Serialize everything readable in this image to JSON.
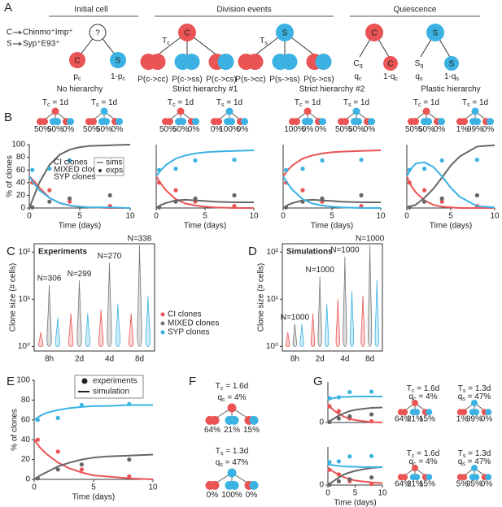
{
  "panel_labels": [
    "A",
    "B",
    "C",
    "D",
    "E",
    "F",
    "G"
  ],
  "key": {
    "c": "C",
    "c_text": "Chinmo⁺Imp⁺",
    "s": "S",
    "s_text": "Syp⁺E93⁺"
  },
  "headers": [
    "Initial cell",
    "Division events",
    "Quiescence"
  ],
  "initial": {
    "root": "?",
    "c": "C",
    "s": "S",
    "pc": [
      "p",
      "c"
    ],
    "one_minus_pc": [
      "1-p",
      "c"
    ]
  },
  "division": {
    "c": "C",
    "tc": [
      "T",
      "c"
    ],
    "c_labels": [
      "P(c->cc)",
      "P(c->ss)",
      "P(c->cs)"
    ],
    "s": "S",
    "ts": [
      "T",
      "s"
    ],
    "s_labels": [
      "P(s->cc)",
      "P(s->ss)",
      "P(s->cs)"
    ]
  },
  "quiescence": {
    "c": "C",
    "cq": [
      "C",
      "q"
    ],
    "qc": [
      "q",
      "c"
    ],
    "c_child": "C",
    "one_minus_qc": [
      "1-q",
      "c"
    ],
    "s": "S",
    "sq": [
      "S",
      "q"
    ],
    "qs": [
      "q",
      "s"
    ],
    "s_child": "S",
    "one_minus_qs": [
      "1-q",
      "s"
    ]
  },
  "hierarchies": [
    {
      "title": "No hierarchy",
      "tc": [
        "T",
        "c",
        " = 1d"
      ],
      "tc_pcts": [
        "50%",
        "50%",
        "0%"
      ],
      "ts": [
        "T",
        "s",
        " = 1d"
      ],
      "ts_pcts": [
        "50%",
        "50%",
        "0%"
      ]
    },
    {
      "title": "Strict hierarchy #1",
      "tc": [
        "T",
        "c",
        " = 1d"
      ],
      "tc_pcts": [
        "50%",
        "50%",
        "0%"
      ],
      "ts": [
        "T",
        "s",
        " = 1d"
      ],
      "ts_pcts": [
        "0%",
        "100%",
        "0%"
      ]
    },
    {
      "title": "Strict hierarchy #2",
      "tc": [
        "T",
        "c",
        " = 1d"
      ],
      "tc_pcts": [
        "100%",
        "0%",
        "0%"
      ],
      "ts": [
        "T",
        "s",
        " = 1d"
      ],
      "ts_pcts": [
        "50%",
        "50%",
        "0%"
      ]
    },
    {
      "title": "Plastic hierarchy",
      "tc": [
        "T",
        "c",
        " = 1d"
      ],
      "tc_pcts": [
        "50%",
        "50%",
        "0%"
      ],
      "ts": [
        "T",
        "s",
        " = 1d"
      ],
      "ts_pcts": [
        "1%",
        "99%",
        "0%"
      ]
    }
  ],
  "fit": {
    "tc": [
      "T",
      "c",
      " = 1.6d"
    ],
    "qc": [
      "q",
      "c",
      " = 4%"
    ],
    "c_pcts": [
      "64%",
      "21%",
      "15%"
    ],
    "ts": [
      "T",
      "s",
      " = 1.3d"
    ],
    "qs": [
      "q",
      "s",
      " = 47%"
    ],
    "s_pcts": [
      "0%",
      "100%",
      "0%"
    ]
  },
  "g_trees": [
    {
      "tc": [
        "T",
        "c",
        " = 1.6d"
      ],
      "qc": [
        "q",
        "c",
        " = 4%"
      ],
      "c_pcts": [
        "64%",
        "21%",
        "15%"
      ],
      "ts": [
        "T",
        "s",
        " = 1.3d"
      ],
      "qs": [
        "q",
        "s",
        " = 47%"
      ],
      "s_pcts": [
        "1%",
        "99%",
        "0%"
      ]
    },
    {
      "tc": [
        "T",
        "c",
        " = 1.6d"
      ],
      "qc": [
        "q",
        "c",
        " = 4%"
      ],
      "c_pcts": [
        "64%",
        "21%",
        "15%"
      ],
      "ts": [
        "T",
        "s",
        " = 1.3d"
      ],
      "qs": [
        "q",
        "s",
        " = 47%"
      ],
      "s_pcts": [
        "5%",
        "95%",
        "0%"
      ]
    }
  ],
  "chart_data": [
    {
      "type": "line",
      "x": [
        0,
        0.5,
        1,
        2,
        3,
        4,
        5,
        6,
        8,
        10
      ],
      "xlim": [
        0,
        10
      ],
      "xticks": [
        0,
        5,
        10
      ],
      "ylim": [
        0,
        100
      ],
      "yticks": [
        0,
        20,
        40,
        60,
        80,
        100
      ],
      "ylabel": "% of clones",
      "xlabel": "Time (days)",
      "legend_labels": [
        "sims",
        "exps"
      ],
      "exp_x": [
        0.3,
        2,
        4,
        8
      ],
      "series": [
        {
          "name": "CI clones",
          "color": "#ea5455",
          "values": [
            50,
            42,
            32,
            16,
            8,
            4,
            2,
            1,
            0,
            0
          ],
          "exp_values": [
            40,
            28,
            10,
            3
          ]
        },
        {
          "name": "MIXED clones",
          "color": "#666666",
          "values": [
            0,
            20,
            40,
            68,
            84,
            92,
            96,
            98,
            99,
            100
          ],
          "exp_values": [
            1,
            10,
            15,
            20
          ]
        },
        {
          "name": "SYP clones",
          "color": "#3bb2e3",
          "values": [
            50,
            38,
            28,
            16,
            8,
            4,
            2,
            1,
            1,
            0
          ],
          "exp_values": [
            60,
            62,
            75,
            76
          ]
        }
      ]
    },
    {
      "type": "line",
      "x": [
        0,
        0.5,
        1,
        2,
        3,
        4,
        5,
        6,
        8,
        10
      ],
      "xlim": [
        0,
        10
      ],
      "xticks": [
        0,
        5,
        10
      ],
      "ylim": [
        0,
        100
      ],
      "xlabel": "Time (days)",
      "exp_x": [
        0.3,
        2,
        4,
        8
      ],
      "series": [
        {
          "color": "#ea5455",
          "values": [
            50,
            38,
            28,
            14,
            7,
            4,
            2,
            1,
            0,
            0
          ],
          "exp_values": [
            40,
            28,
            10,
            3
          ]
        },
        {
          "color": "#666666",
          "values": [
            0,
            5,
            8,
            12,
            13,
            12,
            11,
            10,
            9,
            9
          ],
          "exp_values": [
            1,
            10,
            15,
            20
          ]
        },
        {
          "color": "#3bb2e3",
          "values": [
            50,
            60,
            68,
            78,
            83,
            86,
            88,
            89,
            90,
            91
          ],
          "exp_values": [
            60,
            62,
            75,
            76
          ]
        }
      ]
    },
    {
      "type": "line",
      "x": [
        0,
        0.5,
        1,
        2,
        3,
        4,
        5,
        6,
        8,
        10
      ],
      "xlim": [
        0,
        10
      ],
      "xticks": [
        0,
        5,
        10
      ],
      "ylim": [
        0,
        100
      ],
      "xlabel": "Time (days)",
      "exp_x": [
        0.3,
        2,
        4,
        8
      ],
      "series": [
        {
          "color": "#ea5455",
          "values": [
            50,
            60,
            68,
            78,
            83,
            86,
            88,
            89,
            90,
            91
          ],
          "exp_values": [
            40,
            28,
            10,
            3
          ]
        },
        {
          "color": "#666666",
          "values": [
            0,
            5,
            8,
            12,
            13,
            12,
            11,
            10,
            9,
            9
          ],
          "exp_values": [
            1,
            10,
            15,
            20
          ]
        },
        {
          "color": "#3bb2e3",
          "values": [
            50,
            38,
            28,
            14,
            7,
            4,
            2,
            1,
            0,
            0
          ],
          "exp_values": [
            60,
            62,
            75,
            76
          ]
        }
      ]
    },
    {
      "type": "line",
      "x": [
        0,
        0.5,
        1,
        2,
        3,
        4,
        5,
        6,
        8,
        10
      ],
      "xlim": [
        0,
        10
      ],
      "xticks": [
        0,
        5,
        10
      ],
      "ylim": [
        0,
        100
      ],
      "xlabel": "Time (days)",
      "exp_x": [
        0.3,
        2,
        4,
        8
      ],
      "series": [
        {
          "color": "#ea5455",
          "values": [
            50,
            35,
            25,
            12,
            5,
            2,
            1,
            0,
            0,
            0
          ],
          "exp_values": [
            40,
            28,
            10,
            3
          ]
        },
        {
          "color": "#666666",
          "values": [
            0,
            3,
            5,
            16,
            30,
            48,
            67,
            81,
            97,
            99
          ],
          "exp_values": [
            1,
            10,
            15,
            20
          ]
        },
        {
          "color": "#3bb2e3",
          "values": [
            50,
            62,
            70,
            72,
            65,
            50,
            32,
            18,
            3,
            1
          ],
          "exp_values": [
            60,
            62,
            75,
            76
          ]
        }
      ]
    },
    {
      "type": "violin",
      "title": "Experiments",
      "categories": [
        "8h",
        "2d",
        "4d",
        "8d"
      ],
      "log": true,
      "ylim": [
        0.8,
        150
      ],
      "yticks": [
        {
          "value": 1,
          "label": "10⁰"
        },
        {
          "value": 10,
          "label": "10¹"
        },
        {
          "value": 100,
          "label": "10²"
        }
      ],
      "ylabel": "Clone size (# cells)",
      "annotations": [
        "N=306",
        "N=299",
        "N=270",
        "N=338"
      ],
      "series": [
        {
          "name": "CI clones",
          "color": "#ea5455",
          "values": [
            2,
            5,
            6,
            5
          ]
        },
        {
          "name": "MIXED clones",
          "color": "#777777",
          "values": [
            20,
            25,
            60,
            140
          ]
        },
        {
          "name": "SYP clones",
          "color": "#3bb2e3",
          "values": [
            4,
            5,
            8,
            12
          ]
        }
      ]
    },
    {
      "type": "violin",
      "title": "Simulations",
      "categories": [
        "8h",
        "2d",
        "4d",
        "8d"
      ],
      "log": true,
      "ylim": [
        0.8,
        150
      ],
      "yticks": [
        {
          "value": 1,
          "label": "10⁰"
        },
        {
          "value": 10,
          "label": "10¹"
        },
        {
          "value": 100,
          "label": "10²"
        }
      ],
      "ylabel": "Clone size (# cells)",
      "annotations": [
        "N=1000",
        "N=1000",
        "N=1000",
        "N=1000"
      ],
      "series": [
        {
          "color": "#ea5455",
          "values": [
            2,
            5,
            10,
            12
          ]
        },
        {
          "color": "#777777",
          "values": [
            3,
            30,
            80,
            140
          ]
        },
        {
          "color": "#3bb2e3",
          "values": [
            3,
            8,
            15,
            25
          ]
        }
      ]
    },
    {
      "type": "line",
      "x": [
        0,
        0.5,
        1,
        2,
        3,
        4,
        5,
        6,
        8,
        10
      ],
      "xlim": [
        0,
        10
      ],
      "xticks": [
        0,
        5,
        10
      ],
      "ylim": [
        0,
        100
      ],
      "yticks": [
        0,
        20,
        40,
        60,
        80,
        100
      ],
      "ylabel": "% of clones",
      "xlabel": "Time (days)",
      "legend_labels": [
        "experiments",
        "simulation"
      ],
      "exp_x": [
        0.3,
        2,
        4,
        8
      ],
      "series": [
        {
          "color": "#ea5455",
          "values": [
            40,
            32,
            26,
            17,
            11,
            7,
            4,
            3,
            1,
            0
          ],
          "exp_values": [
            40,
            28,
            10,
            3
          ]
        },
        {
          "color": "#666666",
          "values": [
            0,
            4,
            7,
            13,
            17,
            20,
            22,
            23,
            24,
            25
          ],
          "exp_values": [
            1,
            10,
            15,
            20
          ]
        },
        {
          "color": "#3bb2e3",
          "values": [
            60,
            64,
            67,
            70,
            72,
            73,
            74,
            74,
            75,
            75
          ],
          "exp_values": [
            60,
            62,
            75,
            76
          ]
        }
      ]
    },
    {
      "type": "line",
      "x": [
        0,
        0.5,
        1,
        2,
        3,
        4,
        5,
        6,
        8,
        10
      ],
      "xlim": [
        0,
        10
      ],
      "ylim": [
        0,
        100
      ],
      "yticks": [
        0
      ],
      "exp_x": [
        0.3,
        2,
        4,
        8
      ],
      "series": [
        {
          "color": "#ea5455",
          "values": [
            45,
            37,
            31,
            21,
            14,
            9,
            6,
            4,
            1,
            0
          ],
          "exp_values": [
            40,
            28,
            10,
            3
          ]
        },
        {
          "color": "#666666",
          "values": [
            0,
            5,
            9,
            17,
            23,
            28,
            31,
            33,
            36,
            37
          ],
          "exp_values": [
            1,
            10,
            15,
            20
          ]
        },
        {
          "color": "#3bb2e3",
          "values": [
            55,
            58,
            60,
            62,
            63,
            63,
            64,
            64,
            64,
            64
          ],
          "exp_values": [
            60,
            62,
            75,
            76
          ]
        }
      ]
    },
    {
      "type": "line",
      "x": [
        0,
        0.5,
        1,
        2,
        3,
        4,
        5,
        6,
        8,
        10
      ],
      "xlim": [
        0,
        10
      ],
      "xticks": [
        0,
        5,
        10
      ],
      "ylim": [
        0,
        100
      ],
      "yticks": [
        0
      ],
      "xlabel": "Time (days)",
      "exp_x": [
        0.3,
        2,
        4,
        8
      ],
      "series": [
        {
          "color": "#ea5455",
          "values": [
            45,
            40,
            35,
            27,
            20,
            16,
            12,
            10,
            7,
            5
          ],
          "exp_values": [
            40,
            28,
            10,
            3
          ]
        },
        {
          "color": "#666666",
          "values": [
            0,
            5,
            10,
            20,
            28,
            33,
            37,
            40,
            45,
            47
          ],
          "exp_values": [
            1,
            10,
            15,
            20
          ]
        },
        {
          "color": "#3bb2e3",
          "values": [
            55,
            53,
            52,
            50,
            49,
            48,
            48,
            47,
            47,
            47
          ],
          "exp_values": [
            60,
            62,
            75,
            76
          ]
        }
      ]
    }
  ]
}
